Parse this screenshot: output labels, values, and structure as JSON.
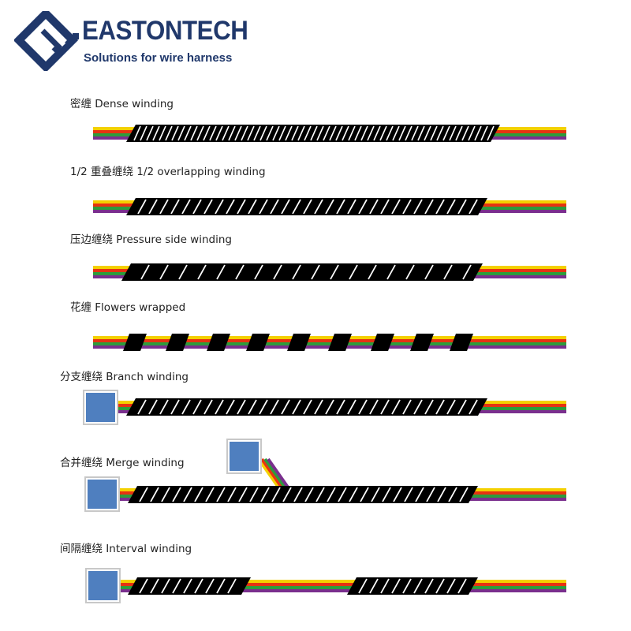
{
  "brand": {
    "name": "EASTONTECH",
    "tagline": "Solutions for wire harness",
    "color": "#20386b"
  },
  "colors": {
    "wires": [
      "#f4d000",
      "#e63312",
      "#2e9c3c",
      "#7a2f8e"
    ],
    "sleeve": "#000000",
    "connector_fill": "#4f7fbf",
    "connector_border": "#c8c8c8"
  },
  "winding_types": [
    {
      "label": "密缠 Dense winding"
    },
    {
      "label": "1/2 重叠缠绕 1/2 overlapping winding"
    },
    {
      "label": "压边缠绕 Pressure side winding"
    },
    {
      "label": "花缠 Flowers wrapped"
    },
    {
      "label": "分支缠绕 Branch winding"
    },
    {
      "label": "合并缠绕 Merge winding"
    },
    {
      "label": "间隔缠绕 Interval winding"
    }
  ]
}
